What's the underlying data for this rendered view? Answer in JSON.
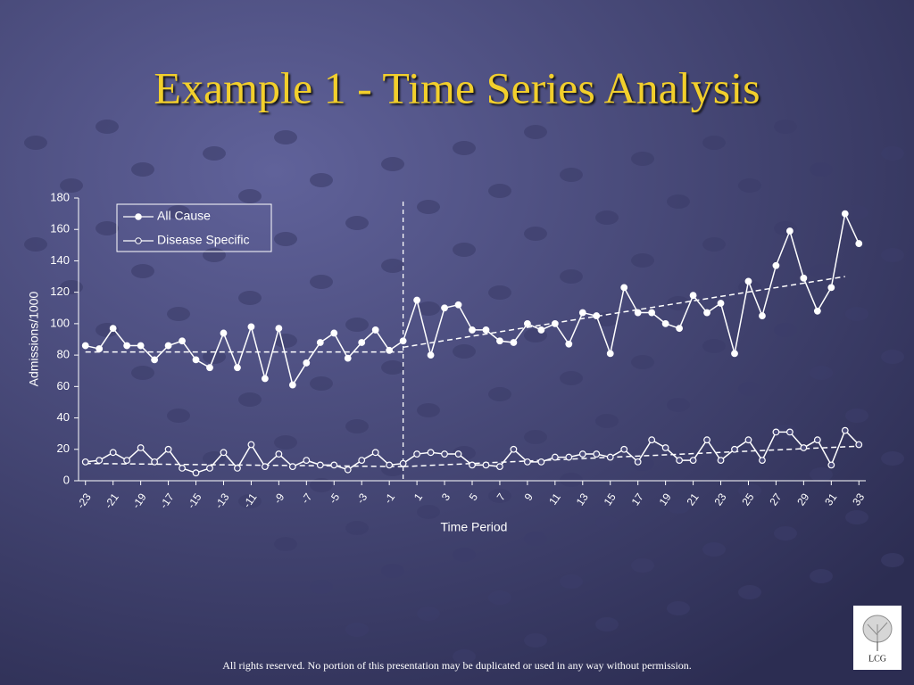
{
  "chart_data": {
    "type": "line",
    "title": "Example 1 - Time Series Analysis",
    "ylabel": "Admissions/1000",
    "xlabel": "Time Period",
    "x": [
      -23,
      -22,
      -21,
      -20,
      -19,
      -18,
      -17,
      -16,
      -15,
      -14,
      -13,
      -12,
      -11,
      -10,
      -9,
      -8,
      -7,
      -6,
      -5,
      -4,
      -3,
      -2,
      -1,
      0,
      1,
      2,
      3,
      4,
      5,
      6,
      7,
      8,
      9,
      10,
      11,
      12,
      13,
      14,
      15,
      16,
      17,
      18,
      19,
      20,
      21,
      22,
      23,
      24,
      25,
      26,
      27,
      28,
      29,
      30,
      31,
      32,
      33
    ],
    "series": [
      {
        "name": "All Cause",
        "color": "#ffffff",
        "marker_fill": "#ffffff",
        "values": [
          86,
          84,
          97,
          86,
          86,
          77,
          86,
          89,
          77,
          72,
          94,
          72,
          98,
          65,
          97,
          61,
          75,
          88,
          94,
          78,
          88,
          96,
          83,
          89,
          115,
          80,
          110,
          112,
          96,
          96,
          89,
          88,
          100,
          96,
          100,
          87,
          107,
          105,
          81,
          123,
          107,
          107,
          100,
          97,
          118,
          107,
          113,
          81,
          127,
          105,
          137,
          159,
          129,
          108,
          123,
          170,
          151
        ]
      },
      {
        "name": "Disease Specific",
        "color": "#ffffff",
        "marker_fill": "#4b4c7c",
        "values": [
          12,
          13,
          18,
          13,
          21,
          12,
          20,
          8,
          5,
          8,
          18,
          8,
          23,
          9,
          17,
          9,
          13,
          10,
          10,
          7,
          13,
          18,
          10,
          11,
          17,
          18,
          17,
          17,
          10,
          10,
          9,
          20,
          12,
          12,
          15,
          15,
          17,
          17,
          15,
          20,
          12,
          26,
          21,
          13,
          13,
          26,
          13,
          20,
          26,
          13,
          31,
          31,
          21,
          26,
          10,
          32,
          23
        ]
      }
    ],
    "trend_lines": [
      {
        "x": [
          -23,
          0
        ],
        "values": [
          82,
          82
        ]
      },
      {
        "x": [
          0,
          32
        ],
        "values": [
          85,
          130
        ]
      },
      {
        "x": [
          -23,
          0
        ],
        "values": [
          11,
          9
        ]
      },
      {
        "x": [
          0,
          33
        ],
        "values": [
          9,
          22
        ]
      }
    ],
    "reference_x": 0,
    "xlim": [
      -23.5,
      33.5
    ],
    "xticks": [
      -23,
      -21,
      -19,
      -17,
      -15,
      -13,
      -11,
      -9,
      -7,
      -5,
      -3,
      -1,
      1,
      3,
      5,
      7,
      9,
      11,
      13,
      15,
      17,
      19,
      21,
      23,
      25,
      27,
      29,
      31,
      33
    ],
    "ylim": [
      0,
      180
    ],
    "yticks": [
      0,
      20,
      40,
      60,
      80,
      100,
      120,
      140,
      160,
      180
    ],
    "legend": "upper left"
  },
  "footer": "All rights reserved. No portion of this presentation may be duplicated or used in any way without permission.",
  "logo": "LCG"
}
